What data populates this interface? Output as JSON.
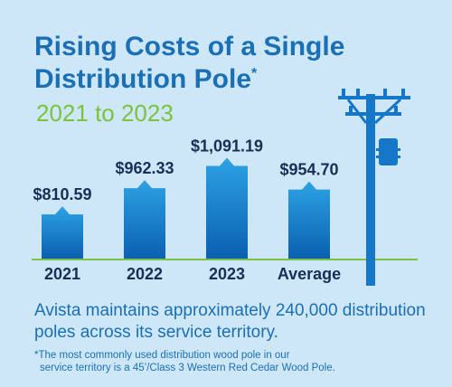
{
  "title": "Rising Costs of a Single Distribution Pole",
  "title_asterisk": "*",
  "subtitle": "2021 to 2023",
  "chart_data": {
    "type": "bar",
    "categories": [
      "2021",
      "2022",
      "2023",
      "Average"
    ],
    "values": [
      810.59,
      962.33,
      1091.19,
      954.7
    ],
    "data_labels": [
      "$810.59",
      "$962.33",
      "$1,091.19",
      "$954.70"
    ],
    "ylim": [
      550,
      1120
    ]
  },
  "body_text": "Avista maintains approximately 240,000 distribution poles across its service territory.",
  "footnote": {
    "line1": "*The most commonly used distribution wood pole in our",
    "line2": "service territory is a 45’/Class 3 Western Red Cedar Wood Pole."
  },
  "colors": {
    "background": "#cde7f7",
    "title": "#1b6fb5",
    "subtitle": "#7cc242",
    "bar_top": "#2da2e4",
    "bar_bottom": "#0a5fb0",
    "baseline": "#7cc242",
    "pole": "#1677c9",
    "labels": "#1a2f55"
  },
  "icon": "utility-pole-icon"
}
